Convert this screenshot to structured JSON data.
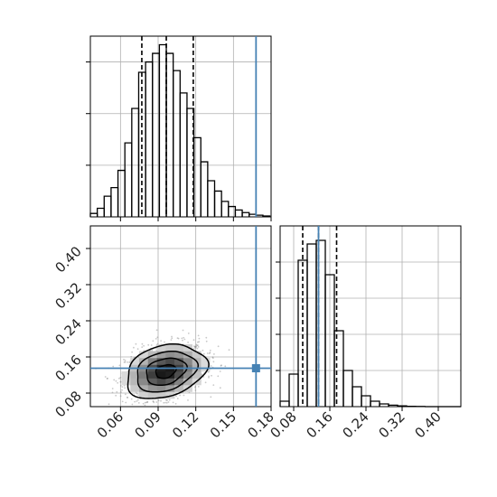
{
  "chart_data": {
    "type": "corner",
    "parameters": [
      {
        "truth": 0.168,
        "quantiles": [
          0.077,
          0.0965,
          0.118
        ]
      },
      {
        "truth": 0.135,
        "quantiles": [
          0.1,
          0.135,
          0.175
        ]
      }
    ],
    "colors": {
      "truth": "#4682b4",
      "hist": "#000000",
      "grid": "#b0b0b0"
    },
    "x_ticks": [
      {
        "value": 0.06,
        "label": "0.06"
      },
      {
        "value": 0.09,
        "label": "0.09"
      },
      {
        "value": 0.12,
        "label": "0.12"
      },
      {
        "value": 0.15,
        "label": "0.15"
      },
      {
        "value": 0.18,
        "label": "0.18"
      }
    ],
    "y_ticks": [
      {
        "value": 0.08,
        "label": "0.08"
      },
      {
        "value": 0.16,
        "label": "0.16"
      },
      {
        "value": 0.24,
        "label": "0.24"
      },
      {
        "value": 0.32,
        "label": "0.32"
      },
      {
        "value": 0.4,
        "label": "0.40"
      }
    ],
    "x2_ticks": [
      {
        "value": 0.08,
        "label": "0.08"
      },
      {
        "value": 0.16,
        "label": "0.16"
      },
      {
        "value": 0.24,
        "label": "0.24"
      },
      {
        "value": 0.32,
        "label": "0.32"
      },
      {
        "value": 0.4,
        "label": "0.40"
      }
    ],
    "xlim": [
      0.036,
      0.18
    ],
    "ylim": [
      0.05,
      0.45
    ],
    "hist1": {
      "bin_width": 0.0055,
      "bin_starts": [
        0.036,
        0.0415,
        0.047,
        0.0525,
        0.058,
        0.0635,
        0.069,
        0.0745,
        0.08,
        0.0855,
        0.091,
        0.0965,
        0.102,
        0.1075,
        0.113,
        0.1185,
        0.124,
        0.1295,
        0.135,
        0.1405,
        0.146,
        0.1515,
        0.157,
        0.1625,
        0.168,
        0.1735
      ],
      "counts": [
        0.2,
        0.5,
        1.2,
        1.7,
        2.7,
        4.3,
        6.3,
        8.4,
        9.0,
        9.5,
        10.0,
        9.5,
        8.5,
        7.2,
        6.3,
        4.6,
        3.2,
        2.1,
        1.5,
        0.9,
        0.6,
        0.4,
        0.25,
        0.15,
        0.1,
        0.05
      ],
      "ylim": [
        0,
        10.5
      ],
      "hidden_ticks": [
        3,
        6,
        9
      ]
    },
    "hist2": {
      "xlim": [
        0.05,
        0.45
      ],
      "bin_width": 0.02,
      "bin_starts": [
        0.05,
        0.07,
        0.09,
        0.11,
        0.13,
        0.15,
        0.17,
        0.19,
        0.21,
        0.23,
        0.25,
        0.27,
        0.29,
        0.31,
        0.33,
        0.35,
        0.37,
        0.39,
        0.41,
        0.43
      ],
      "counts": [
        0.3,
        1.8,
        8.1,
        9.0,
        9.2,
        7.3,
        4.2,
        2.0,
        1.1,
        0.6,
        0.3,
        0.15,
        0.08,
        0.04,
        0.02,
        0.01,
        0,
        0,
        0,
        0
      ],
      "ylim": [
        0,
        10
      ],
      "hidden_ticks": [
        2,
        4,
        6,
        8
      ]
    },
    "contour": {
      "center": [
        0.096,
        0.128
      ],
      "sigma": [
        0.016,
        0.03
      ],
      "rho": 0.26,
      "levels": [
        0.5,
        1.0,
        1.5,
        2.0
      ],
      "n_points": 1400
    }
  }
}
